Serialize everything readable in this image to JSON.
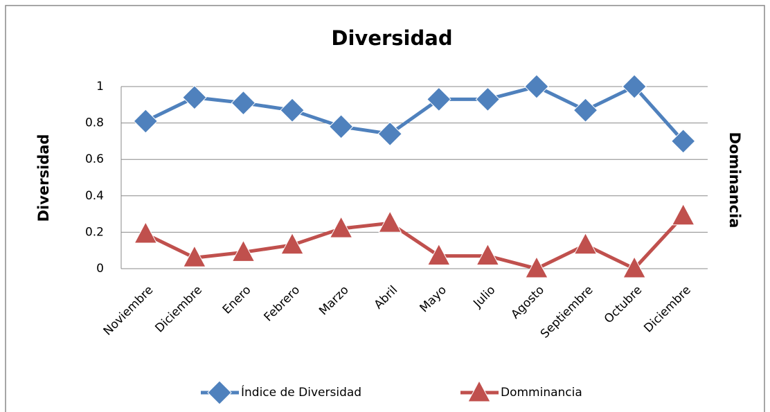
{
  "chart_data": {
    "type": "line",
    "title": "Diversidad",
    "y_label": "Diversidad",
    "y2_label": "Dominancia",
    "categories": [
      "Noviembre",
      "Diciembre",
      "Enero",
      "Febrero",
      "Marzo",
      "Abril",
      "Mayo",
      "Julio",
      "Agosto",
      "Septiembre",
      "Octubre",
      "Diciembre"
    ],
    "series": [
      {
        "name": "Índice de Diversidad",
        "color": "#4f81bd",
        "marker": "diamond",
        "values": [
          0.81,
          0.94,
          0.91,
          0.87,
          0.78,
          0.74,
          0.93,
          0.93,
          1.0,
          0.87,
          1.0,
          0.7
        ]
      },
      {
        "name": "Domminancia",
        "color": "#c0504d",
        "marker": "triangle",
        "values": [
          0.19,
          0.06,
          0.09,
          0.13,
          0.22,
          0.25,
          0.07,
          0.07,
          0,
          0.13,
          0,
          0.29
        ]
      }
    ],
    "ylim": [
      0,
      1
    ],
    "yticks": [
      0,
      0.2,
      0.4,
      0.6,
      0.8,
      1
    ],
    "grid": true,
    "legend": "bottom"
  }
}
